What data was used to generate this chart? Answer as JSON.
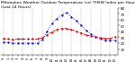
{
  "title": "Milwaukee Weather Outdoor Temperature (vs) THSW Index per Hour (Last 24 Hours)",
  "hours": [
    0,
    1,
    2,
    3,
    4,
    5,
    6,
    7,
    8,
    9,
    10,
    11,
    12,
    13,
    14,
    15,
    16,
    17,
    18,
    19,
    20,
    21,
    22,
    23
  ],
  "temp": [
    28,
    27,
    26,
    27,
    27,
    27,
    27,
    27,
    29,
    34,
    39,
    43,
    45,
    45,
    43,
    40,
    37,
    34,
    32,
    30,
    29,
    28,
    28,
    31
  ],
  "thsw": [
    22,
    21,
    20,
    20,
    20,
    20,
    20,
    20,
    26,
    40,
    54,
    62,
    68,
    72,
    65,
    58,
    50,
    42,
    36,
    31,
    27,
    25,
    24,
    25
  ],
  "temp_color": "#cc0000",
  "thsw_color": "#0000cc",
  "bg_color": "#ffffff",
  "ylim": [
    0,
    80
  ],
  "yticks": [
    10,
    20,
    30,
    40,
    50,
    60,
    70,
    80
  ],
  "grid_x": [
    0,
    2,
    4,
    6,
    8,
    10,
    12,
    14,
    16,
    18,
    20,
    22
  ],
  "grid_color": "#999999",
  "title_fontsize": 3.2,
  "tick_fontsize": 2.8,
  "line_width": 0.6,
  "marker_size": 1.2
}
